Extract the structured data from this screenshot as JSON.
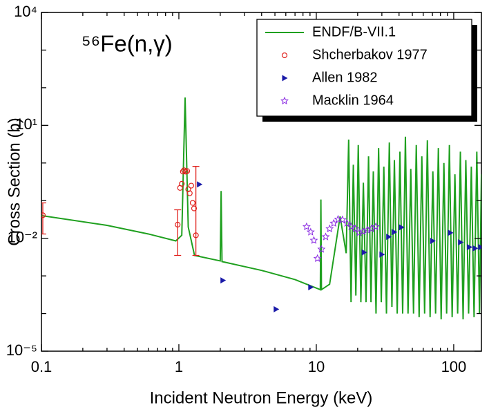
{
  "chart_data": {
    "type": "line",
    "annotation": "⁵⁶Fe(n,γ)",
    "xlabel": "Incident Neutron Energy (keV)",
    "ylabel": "Cross Section (b)",
    "xscale": "log",
    "yscale": "log",
    "xlim": [
      0.1,
      159
    ],
    "ylim": [
      1e-05,
      10000
    ],
    "xticks": [
      0.1,
      1,
      10,
      100
    ],
    "xminor_ticks": [
      0.2,
      0.3,
      0.4,
      0.5,
      0.6,
      0.7,
      0.8,
      0.9,
      2,
      3,
      4,
      5,
      6,
      7,
      8,
      9,
      20,
      30,
      40,
      50,
      60,
      70,
      80,
      90
    ],
    "yticks": [
      {
        "value": 10000,
        "label": "10⁴"
      },
      {
        "value": 10,
        "label": "10¹"
      },
      {
        "value": 0.01,
        "label": "10⁻²"
      },
      {
        "value": 1e-05,
        "label": "10⁻⁵"
      }
    ],
    "yminor_ticks": [
      1000,
      100,
      1,
      0.1,
      0.001,
      0.0001
    ],
    "legend": "upper right",
    "series": [
      {
        "name": "ENDF/B-VII.1",
        "color": "#1fa01f",
        "marker": "line",
        "x": [
          0.1,
          0.3,
          0.6,
          0.95,
          1.05,
          1.11,
          1.17,
          1.3,
          2.0,
          2.03,
          2.06,
          4,
          7,
          10.7,
          10.8,
          10.9,
          12.5,
          14.9,
          16.5,
          17.2,
          17.9,
          18.6,
          19.4,
          20.2,
          21.1,
          22,
          23,
          24,
          25,
          26,
          27.2,
          28.4,
          29.7,
          31,
          32.4,
          34,
          35.5,
          37,
          38.8,
          40.6,
          42.5,
          44.5,
          46.5,
          48.7,
          51,
          53.4,
          56,
          58.6,
          61.4,
          64.3,
          67.3,
          70.5,
          73.8,
          77.3,
          81,
          84.8,
          88.8,
          93,
          97.4,
          102,
          106.8,
          111.8,
          117,
          122.5,
          128.3,
          134.3,
          140.6,
          147.2,
          154,
          159
        ],
        "y": [
          0.04,
          0.022,
          0.013,
          0.0085,
          0.012,
          55,
          0.02,
          0.0035,
          0.0025,
          0.18,
          0.0024,
          0.0014,
          0.0008,
          0.00043,
          0.107,
          0.00043,
          0.0006,
          0.038,
          0.004,
          4.2,
          0.0002,
          0.9,
          0.0003,
          3,
          0.0002,
          0.3,
          0.0002,
          1.5,
          0.0002,
          0.6,
          0.0001,
          2.5,
          0.0002,
          0.8,
          0.0001,
          3.5,
          0.00015,
          1.2,
          0.0001,
          2,
          0.0001,
          5,
          0.0001,
          0.7,
          0.0001,
          3,
          8e-05,
          1.5,
          0.0001,
          4,
          8e-05,
          0.6,
          0.0001,
          2.5,
          7e-05,
          1,
          0.0001,
          3,
          8e-05,
          0.5,
          0.0001,
          2,
          7e-05,
          1.2,
          0.0001,
          0.8,
          8e-05,
          2,
          0.0001,
          0.5
        ]
      },
      {
        "name": "Shcherbakov 1977",
        "color": "#e0201c",
        "marker": "circle",
        "x": [
          0.1023,
          0.98,
          1.02,
          1.05,
          1.07,
          1.09,
          1.12,
          1.15,
          1.17,
          1.2,
          1.23,
          1.26,
          1.29,
          1.33
        ],
        "y": [
          0.041,
          0.023,
          0.218,
          0.28,
          0.59,
          0.64,
          0.59,
          0.61,
          0.2,
          0.157,
          0.25,
          0.087,
          0.062,
          0.012
        ],
        "err_high": [
          0.046,
          0.034,
          null,
          null,
          null,
          null,
          null,
          null,
          null,
          null,
          null,
          null,
          null,
          0.8
        ],
        "err_low": [
          0.028,
          0.0195,
          null,
          null,
          null,
          null,
          null,
          null,
          null,
          null,
          null,
          null,
          null,
          0.0085
        ]
      },
      {
        "name": "Allen 1982",
        "color": "#1a1aa8",
        "marker": "triangle-right",
        "x": [
          1.41,
          2.09,
          5.1,
          9.1,
          22.3,
          30,
          33.6,
          36.9,
          41.6,
          70.2,
          94.6,
          112,
          130,
          143,
          157
        ],
        "y": [
          0.27,
          0.00076,
          0.00013,
          0.0005,
          0.0042,
          0.0037,
          0.0109,
          0.0146,
          0.0195,
          0.0085,
          0.014,
          0.0078,
          0.0058,
          0.0054,
          0.0058
        ]
      },
      {
        "name": "Macklin 1964",
        "color": "#8a2be2",
        "marker": "star",
        "x": [
          8.5,
          9.1,
          9.6,
          10.2,
          10.9,
          11.7,
          12.5,
          13.4,
          14.4,
          15.5,
          16.7,
          17.9,
          19.2,
          20.5,
          21.9,
          23.5,
          25.2,
          27.1
        ],
        "y": [
          0.0203,
          0.0146,
          0.0088,
          0.0029,
          0.0051,
          0.0109,
          0.0179,
          0.025,
          0.032,
          0.031,
          0.025,
          0.0203,
          0.0179,
          0.014,
          0.0152,
          0.0165,
          0.0179,
          0.0203
        ]
      }
    ]
  }
}
